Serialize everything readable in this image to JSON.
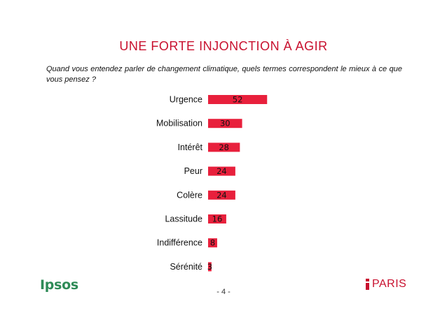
{
  "title": "UNE FORTE INJONCTION À AGIR",
  "question": "Quand vous entendez parler de changement climatique, quels termes correspondent le mieux à ce que vous pensez ?",
  "footer": {
    "logo": "Ipsos",
    "page": "- 4 -",
    "city": "PARIS"
  },
  "colors": {
    "bar": "#e8203c",
    "title": "#c8102e",
    "logo": "#2e8b57"
  },
  "chart_data": {
    "type": "bar",
    "orientation": "horizontal",
    "categories": [
      "Urgence",
      "Mobilisation",
      "Intérêt",
      "Peur",
      "Colère",
      "Lassitude",
      "Indifférence",
      "Sérénité"
    ],
    "values": [
      52,
      30,
      28,
      24,
      24,
      16,
      8,
      3
    ],
    "data_labels": [
      "52",
      "30",
      "28",
      "24",
      "24",
      "16",
      "8",
      "3"
    ],
    "title": "",
    "xlabel": "",
    "ylabel": "",
    "xlim": [
      0,
      52
    ],
    "grid": false,
    "legend": "none"
  }
}
